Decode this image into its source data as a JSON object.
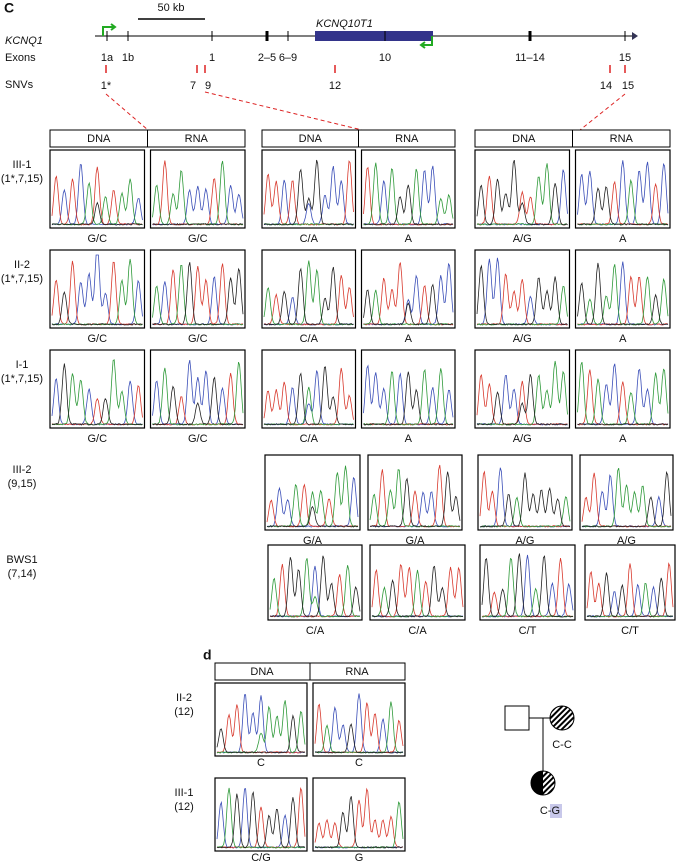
{
  "panel_c": {
    "label": "C",
    "scale_bar": "50 kb",
    "gene_labels": [
      "KCNQ1",
      "KCNQ10T1"
    ],
    "row_labels": [
      "Exons",
      "SNVs"
    ],
    "exons": [
      "1a",
      "1b",
      "1",
      "2–5",
      "6–9",
      "10",
      "11–14",
      "15"
    ],
    "snvs": [
      "1*",
      "7",
      "9",
      "12",
      "14",
      "15"
    ],
    "headers": [
      "DNA",
      "RNA",
      "DNA",
      "RNA",
      "DNA",
      "RNA"
    ],
    "samples": [
      {
        "name": "III-1",
        "snvs": "(1*,7,15)",
        "calls": [
          "G/C",
          "G/C",
          "C/A",
          "A",
          "A/G",
          "A"
        ]
      },
      {
        "name": "II-2",
        "snvs": "(1*,7,15)",
        "calls": [
          "G/C",
          "G/C",
          "C/A",
          "A",
          "A/G",
          "A"
        ]
      },
      {
        "name": "I-1",
        "snvs": "(1*,7,15)",
        "calls": [
          "G/C",
          "G/C",
          "C/A",
          "A",
          "A/G",
          "A"
        ]
      },
      {
        "name": "III-2",
        "snvs": "(9,15)",
        "calls": [
          "G/A",
          "G/A",
          "A/G",
          "A/G"
        ]
      },
      {
        "name": "BWS1",
        "snvs": "(7,14)",
        "calls": [
          "C/A",
          "C/A",
          "C/T",
          "C/T"
        ]
      }
    ]
  },
  "panel_d": {
    "label": "d",
    "headers": [
      "DNA",
      "RNA"
    ],
    "samples": [
      {
        "name": "II-2",
        "snvs": "(12)",
        "calls": [
          "C",
          "C"
        ]
      },
      {
        "name": "III-1",
        "snvs": "(12)",
        "calls": [
          "C/G",
          "G"
        ]
      }
    ],
    "pedigree_genotypes": [
      "C-C",
      "C-G"
    ]
  }
}
